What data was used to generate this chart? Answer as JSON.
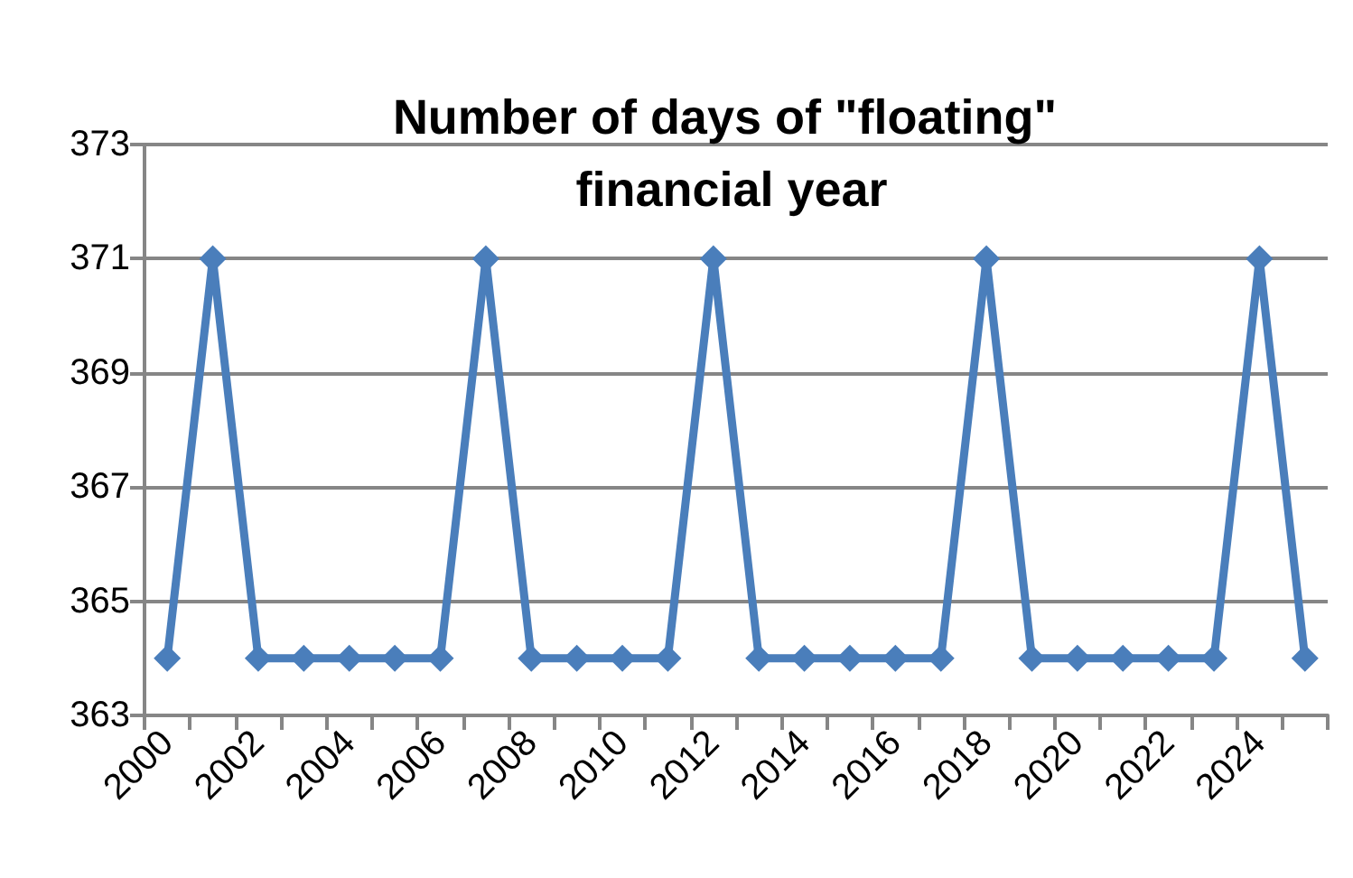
{
  "chart_data": {
    "type": "line",
    "title": "Number of days of \"floating\" financial year",
    "categories": [
      "2000",
      null,
      "2002",
      null,
      "2004",
      null,
      "2006",
      null,
      "2008",
      null,
      "2010",
      null,
      "2012",
      null,
      "2014",
      null,
      "2016",
      null,
      "2018",
      null,
      "2020",
      null,
      "2022",
      null,
      "2024",
      null
    ],
    "series": [
      {
        "color": "#4a7ebb",
        "values": [
          364,
          371,
          364,
          364,
          364,
          364,
          364,
          371,
          364,
          364,
          364,
          364,
          371,
          364,
          364,
          364,
          364,
          364,
          371,
          364,
          364,
          364,
          364,
          364,
          371,
          364
        ]
      }
    ],
    "ylim": [
      363,
      373
    ],
    "yticks": [
      363,
      365,
      367,
      369,
      371,
      373
    ],
    "grid": "y",
    "marker": "diamond",
    "line_style": "solid"
  }
}
